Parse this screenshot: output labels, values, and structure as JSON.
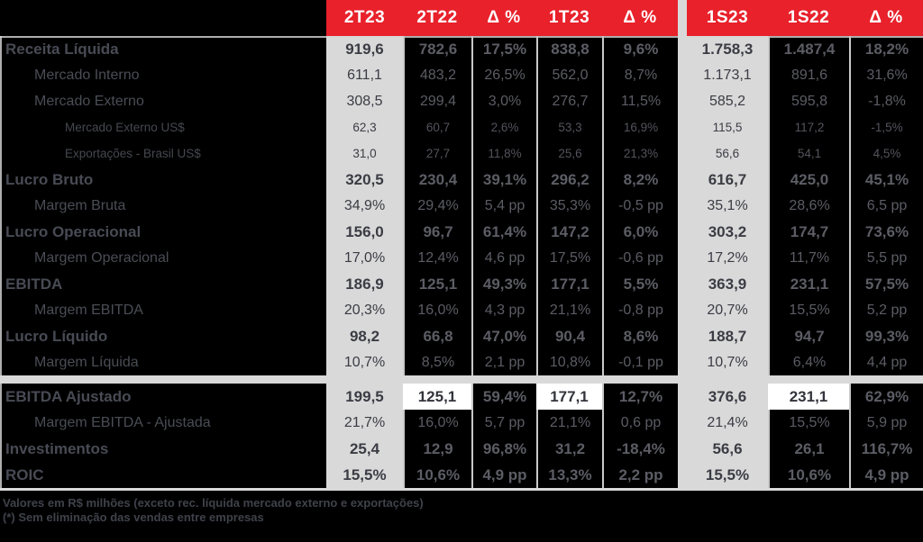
{
  "title": "Tabela de resultados trimestrais",
  "header": {
    "labels": [
      "2T23",
      "2T22",
      "Δ %",
      "1T23",
      "Δ %",
      "1S23",
      "1S22",
      "Δ %"
    ]
  },
  "colors": {
    "background": "#000000",
    "header_red": "#e8212b",
    "column_gray": "#d9d9d9",
    "highlight_white": "#ffffff",
    "grid_line": "#c9c9c9"
  },
  "chart_data": {
    "type": "table",
    "columns": [
      "2T23",
      "2T22",
      "Δ %",
      "1T23",
      "Δ %",
      "1S23",
      "1S22",
      "Δ %"
    ],
    "rows_note": "values as displayed; pp = percentage points"
  },
  "rows": [
    {
      "label": "Receita Líquida",
      "level": 0,
      "section": 1,
      "values": [
        "919,6",
        "782,6",
        "17,5%",
        "838,8",
        "9,6%",
        "1.758,3",
        "1.487,4",
        "18,2%"
      ],
      "highlight_cols": []
    },
    {
      "label": "Mercado Interno",
      "level": 1,
      "section": 1,
      "values": [
        "611,1",
        "483,2",
        "26,5%",
        "562,0",
        "8,7%",
        "1.173,1",
        "891,6",
        "31,6%"
      ],
      "highlight_cols": []
    },
    {
      "label": "Mercado Externo",
      "level": 1,
      "section": 1,
      "values": [
        "308,5",
        "299,4",
        "3,0%",
        "276,7",
        "11,5%",
        "585,2",
        "595,8",
        "-1,8%"
      ],
      "highlight_cols": []
    },
    {
      "label": "Mercado Externo US$",
      "level": 2,
      "section": 1,
      "values": [
        "62,3",
        "60,7",
        "2,6%",
        "53,3",
        "16,9%",
        "115,5",
        "117,2",
        "-1,5%"
      ],
      "highlight_cols": []
    },
    {
      "label": "Exportações - Brasil US$",
      "level": 2,
      "section": 1,
      "values": [
        "31,0",
        "27,7",
        "11,8%",
        "25,6",
        "21,3%",
        "56,6",
        "54,1",
        "4,5%"
      ],
      "highlight_cols": []
    },
    {
      "label": "Lucro Bruto",
      "level": 0,
      "section": 1,
      "values": [
        "320,5",
        "230,4",
        "39,1%",
        "296,2",
        "8,2%",
        "616,7",
        "425,0",
        "45,1%"
      ],
      "highlight_cols": []
    },
    {
      "label": "Margem Bruta",
      "level": 1,
      "section": 1,
      "values": [
        "34,9%",
        "29,4%",
        "5,4 pp",
        "35,3%",
        "-0,5 pp",
        "35,1%",
        "28,6%",
        "6,5 pp"
      ],
      "highlight_cols": []
    },
    {
      "label": "Lucro Operacional",
      "level": 0,
      "section": 1,
      "values": [
        "156,0",
        "96,7",
        "61,4%",
        "147,2",
        "6,0%",
        "303,2",
        "174,7",
        "73,6%"
      ],
      "highlight_cols": []
    },
    {
      "label": "Margem Operacional",
      "level": 1,
      "section": 1,
      "values": [
        "17,0%",
        "12,4%",
        "4,6 pp",
        "17,5%",
        "-0,6 pp",
        "17,2%",
        "11,7%",
        "5,5 pp"
      ],
      "highlight_cols": []
    },
    {
      "label": "EBITDA",
      "level": 0,
      "section": 1,
      "values": [
        "186,9",
        "125,1",
        "49,3%",
        "177,1",
        "5,5%",
        "363,9",
        "231,1",
        "57,5%"
      ],
      "highlight_cols": []
    },
    {
      "label": "Margem EBITDA",
      "level": 1,
      "section": 1,
      "values": [
        "20,3%",
        "16,0%",
        "4,3 pp",
        "21,1%",
        "-0,8 pp",
        "20,7%",
        "15,5%",
        "5,2 pp"
      ],
      "highlight_cols": []
    },
    {
      "label": "Lucro Líquido",
      "level": 0,
      "section": 1,
      "values": [
        "98,2",
        "66,8",
        "47,0%",
        "90,4",
        "8,6%",
        "188,7",
        "94,7",
        "99,3%"
      ],
      "highlight_cols": []
    },
    {
      "label": "Margem Líquida",
      "level": 1,
      "section": 1,
      "values": [
        "10,7%",
        "8,5%",
        "2,1 pp",
        "10,8%",
        "-0,1 pp",
        "10,7%",
        "6,4%",
        "4,4 pp"
      ],
      "highlight_cols": []
    },
    {
      "label": "EBITDA Ajustado",
      "level": 0,
      "section": 2,
      "values": [
        "199,5",
        "125,1",
        "59,4%",
        "177,1",
        "12,7%",
        "376,6",
        "231,1",
        "62,9%"
      ],
      "highlight_cols": [
        1,
        3,
        6
      ]
    },
    {
      "label": "Margem EBITDA - Ajustada",
      "level": 1,
      "section": 2,
      "values": [
        "21,7%",
        "16,0%",
        "5,7 pp",
        "21,1%",
        "0,6 pp",
        "21,4%",
        "15,5%",
        "5,9 pp"
      ],
      "highlight_cols": []
    },
    {
      "label": "Investimentos",
      "level": 0,
      "section": 2,
      "values": [
        "25,4",
        "12,9",
        "96,8%",
        "31,2",
        "-18,4%",
        "56,6",
        "26,1",
        "116,7%"
      ],
      "highlight_cols": []
    },
    {
      "label": "ROIC",
      "level": 0,
      "section": 2,
      "values": [
        "15,5%",
        "10,6%",
        "4,9 pp",
        "13,3%",
        "2,2 pp",
        "15,5%",
        "10,6%",
        "4,9 pp"
      ],
      "highlight_cols": []
    }
  ],
  "footnotes": [
    "Valores em R$ milhões (exceto rec. líquida mercado externo e exportações)",
    "(*) Sem eliminação das vendas entre empresas"
  ]
}
